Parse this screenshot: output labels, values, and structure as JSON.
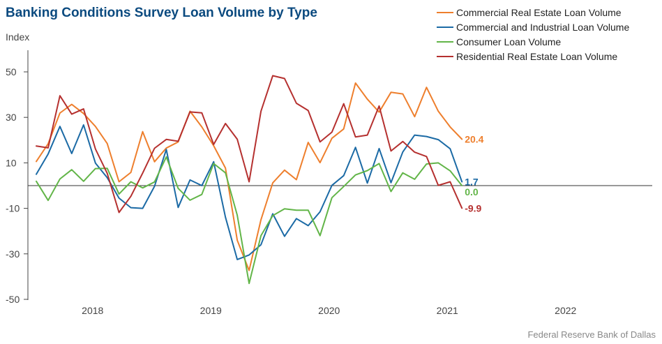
{
  "chart_data": {
    "type": "line",
    "title": "Banking Conditions Survey Loan Volume by Type",
    "ylabel": "Index",
    "ylim": [
      -50,
      50
    ],
    "yticks": [
      50,
      30,
      10,
      -10,
      -30,
      -50
    ],
    "xlim": [
      0,
      48
    ],
    "xticks": [
      {
        "label": "2018",
        "pos": 5
      },
      {
        "label": "2019",
        "pos": 15
      },
      {
        "label": "2020",
        "pos": 25
      },
      {
        "label": "2021",
        "pos": 35
      },
      {
        "label": "2022",
        "pos": 45
      }
    ],
    "zero_line": true,
    "grid": false,
    "legend_position": "top-right",
    "source": "Federal Reserve Bank of Dallas",
    "series": [
      {
        "name": "Commercial Real Estate Loan Volume",
        "color": "#ee7f2d",
        "end_label": "20.4",
        "values": [
          10.6,
          18.4,
          31.9,
          35.7,
          31.7,
          26.0,
          18.5,
          1.7,
          5.8,
          23.7,
          10.5,
          16.5,
          19.2,
          32.7,
          25.8,
          17.5,
          7.7,
          -24.0,
          -37.3,
          -15.0,
          1.2,
          6.8,
          2.6,
          19.0,
          10.1,
          20.8,
          24.9,
          45.1,
          38.0,
          32.3,
          41.0,
          40.3,
          30.3,
          43.2,
          32.7,
          25.8,
          20.4
        ]
      },
      {
        "name": "Commercial and Industrial Loan Volume",
        "color": "#1b6aa5",
        "end_label": "1.7",
        "values": [
          5.0,
          13.9,
          26.0,
          14.1,
          26.7,
          9.9,
          3.5,
          -5.5,
          -9.7,
          -10.0,
          -0.3,
          15.9,
          -9.6,
          2.5,
          0.0,
          10.5,
          -13.9,
          -32.5,
          -30.5,
          -26.0,
          -12.4,
          -22.3,
          -14.5,
          -17.6,
          -11.5,
          0.1,
          4.4,
          16.8,
          1.1,
          16.3,
          1.3,
          14.8,
          22.2,
          21.6,
          20.2,
          16.2,
          1.7
        ]
      },
      {
        "name": "Consumer Loan Volume",
        "color": "#62b548",
        "end_label": "0.0",
        "values": [
          1.9,
          -6.5,
          2.9,
          7.0,
          1.9,
          7.5,
          7.6,
          -3.7,
          1.7,
          -1.0,
          1.6,
          12.6,
          -1.2,
          -6.4,
          -3.9,
          9.7,
          5.6,
          -13.0,
          -43.0,
          -22.0,
          -13.2,
          -10.2,
          -10.8,
          -10.8,
          -22.0,
          -5.3,
          -0.4,
          4.7,
          6.6,
          9.7,
          -2.6,
          5.6,
          2.8,
          9.5,
          10.0,
          6.5,
          0.0
        ]
      },
      {
        "name": "Residential Real Estate Loan Volume",
        "color": "#b5302f",
        "end_label": "-9.9",
        "values": [
          17.4,
          16.6,
          39.5,
          31.4,
          33.7,
          16.1,
          5.4,
          -11.8,
          -4.7,
          5.5,
          16.4,
          20.3,
          19.5,
          32.4,
          32.0,
          18.1,
          27.3,
          20.4,
          1.7,
          32.7,
          48.3,
          47.1,
          36.2,
          33.0,
          19.2,
          23.5,
          36.0,
          21.4,
          22.2,
          35.0,
          15.2,
          19.4,
          14.7,
          12.8,
          0.1,
          1.7,
          -9.9
        ]
      }
    ]
  }
}
